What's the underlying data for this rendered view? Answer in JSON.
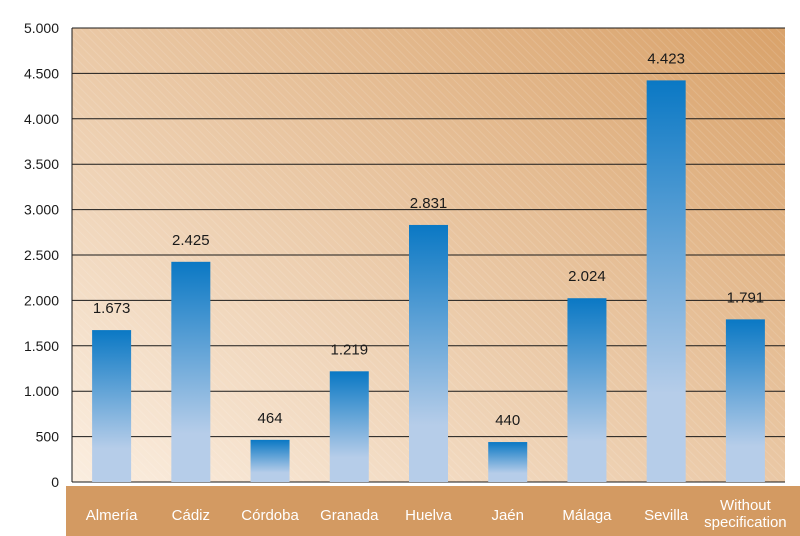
{
  "chart_data": {
    "type": "bar",
    "title": "",
    "xlabel": "",
    "ylabel": "",
    "categories": [
      [
        "Almería"
      ],
      [
        "Cádiz"
      ],
      [
        "Córdoba"
      ],
      [
        "Granada"
      ],
      [
        "Huelva"
      ],
      [
        "Jaén"
      ],
      [
        "Málaga"
      ],
      [
        "Sevilla"
      ],
      [
        "Without",
        "specification"
      ]
    ],
    "values": [
      1673,
      2425,
      464,
      1219,
      2831,
      440,
      2024,
      4423,
      1791
    ],
    "value_labels": [
      "1.673",
      "2.425",
      "464",
      "1.219",
      "2.831",
      "440",
      "2.024",
      "4.423",
      "1.791"
    ],
    "ylim": [
      0,
      5000
    ],
    "yticks": [
      0,
      500,
      1000,
      1500,
      2000,
      2500,
      3000,
      3500,
      4000,
      4500,
      5000
    ],
    "ytick_labels": [
      "0",
      "500",
      "1.000",
      "1.500",
      "2.000",
      "2.500",
      "3.000",
      "3.500",
      "4.000",
      "4.500",
      "5.000"
    ],
    "grid": true,
    "legend": "none",
    "colors": {
      "bar_top": "#0a78c4",
      "bar_bottom": "#b6cde9",
      "plot_bg_light": "#fbeee0",
      "plot_bg_dark": "#d9a26a",
      "category_band": "#d39a62",
      "grid": "#1a1a1a"
    }
  }
}
